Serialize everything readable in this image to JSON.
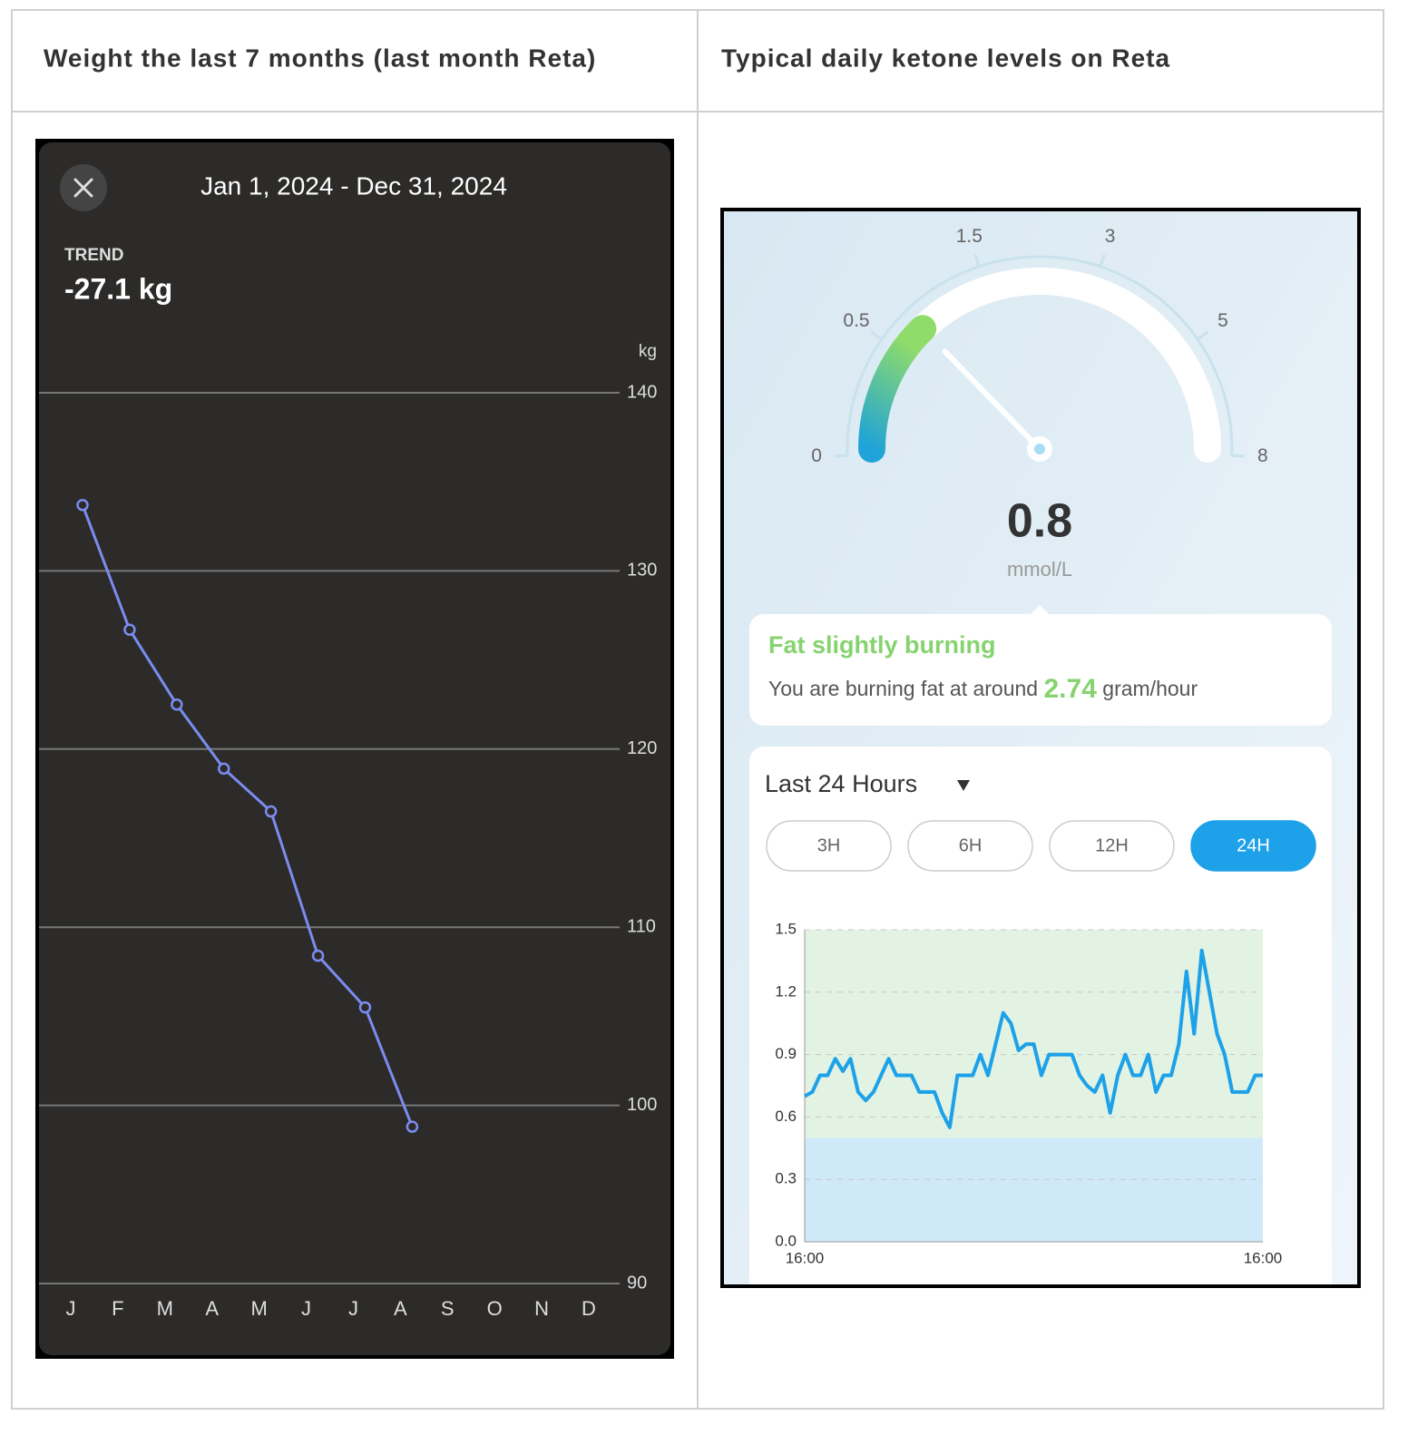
{
  "table": {
    "headers": [
      "Weight the last 7 months (last month Reta)",
      "Typical daily ketone levels on Reta"
    ]
  },
  "weight_app": {
    "date_range": "Jan 1, 2024 - Dec 31, 2024",
    "trend_label": "TREND",
    "trend_value": "-27.1 kg"
  },
  "ketone_app": {
    "status": "Fat slightly burning",
    "message": "You are burning fat at around",
    "rate": 2.74,
    "rate_unit": "gram/hour",
    "period": "Last 24 Hours",
    "ranges": [
      "3H",
      "6H",
      "12H",
      "24H"
    ]
  },
  "chart_data": [
    {
      "type": "line",
      "y_label": "kg",
      "categories": [
        "J",
        "F",
        "M",
        "A",
        "M",
        "J",
        "J",
        "A",
        "S",
        "O",
        "N",
        "D"
      ],
      "series": [
        {
          "color": "#7b8cf0",
          "values": [
            133.7,
            126.7,
            122.5,
            118.9,
            116.5,
            108.4,
            105.5,
            98.8,
            null,
            null,
            null,
            null
          ]
        }
      ],
      "ylim": [
        90,
        140
      ],
      "yticks": [
        90,
        100,
        110,
        120,
        130,
        140
      ],
      "grid": true
    },
    {
      "type": "gauge",
      "value": 0.8,
      "unit": "mmol/L",
      "ticks": [
        0,
        0.5,
        1.5,
        3,
        5,
        8
      ]
    },
    {
      "type": "line",
      "categories": [
        "16:00",
        null,
        null,
        null,
        null,
        null,
        null,
        null,
        null,
        null,
        null,
        null,
        null,
        null,
        null,
        null,
        null,
        null,
        null,
        null,
        null,
        null,
        null,
        null,
        null,
        null,
        null,
        null,
        null,
        null,
        null,
        null,
        null,
        null,
        null,
        null,
        null,
        null,
        null,
        null,
        null,
        null,
        null,
        null,
        null,
        null,
        null,
        null,
        null,
        null,
        null,
        null,
        null,
        null,
        null,
        null,
        null,
        null,
        null,
        null,
        "16:00"
      ],
      "series": [
        {
          "color": "#1da1e8",
          "values": [
            0.7,
            0.72,
            0.8,
            0.8,
            0.88,
            0.82,
            0.88,
            0.72,
            0.68,
            0.72,
            0.8,
            0.88,
            0.8,
            0.8,
            0.8,
            0.72,
            0.72,
            0.72,
            0.62,
            0.55,
            0.8,
            0.8,
            0.8,
            0.9,
            0.8,
            0.95,
            1.1,
            1.05,
            0.92,
            0.95,
            0.95,
            0.8,
            0.9,
            0.9,
            0.9,
            0.9,
            0.8,
            0.75,
            0.72,
            0.8,
            0.62,
            0.8,
            0.9,
            0.8,
            0.8,
            0.9,
            0.72,
            0.8,
            0.8,
            0.95,
            1.3,
            1.0,
            1.4,
            1.2,
            1.0,
            0.9,
            0.72,
            0.72,
            0.72,
            0.8,
            0.8
          ]
        }
      ],
      "bands": [
        {
          "from": 0,
          "to": 0.5,
          "color": "#cfe9f9"
        },
        {
          "from": 0.5,
          "to": 1.5,
          "color": "#e3f3e3"
        }
      ],
      "ylim": [
        0,
        1.5
      ],
      "yticks": [
        {
          "value": 0,
          "label": "0.0"
        },
        0.3,
        0.6,
        0.9,
        1.2,
        1.5
      ],
      "grid": true
    }
  ]
}
